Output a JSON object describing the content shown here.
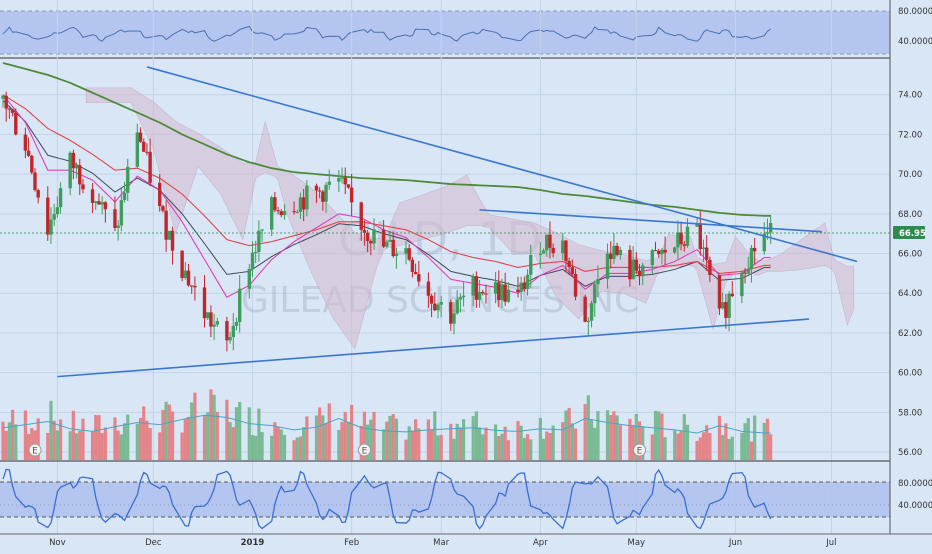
{
  "colors": {
    "background": "#d8e6f6",
    "panel_band": "#aebfee",
    "up_candle": "#3f9c5d",
    "down_candle": "#c0272d",
    "vol_up": "#6fb58a",
    "vol_down": "#e5787c",
    "trendline": "#3b78cc",
    "sma200": "#4f8a3a",
    "ema_red": "#e0454a",
    "ema_pink": "#e040b8",
    "ema_dark": "#404a5a",
    "cloud": "#d7b9cf",
    "price_tag": "#2e8b4e",
    "oscillator": "#3a6fd0"
  },
  "watermark": {
    "symbol": "GILD, 1D",
    "name": "GILEAD SCIENCES INC"
  },
  "price_tag": "66.95",
  "top_axis": [
    "80.0000",
    "40.0000"
  ],
  "price_axis": [
    "74.00",
    "72.00",
    "70.00",
    "68.00",
    "66.00",
    "64.00",
    "62.00",
    "60.00",
    "58.00",
    "56.00"
  ],
  "bottom_axis": [
    "80.0000",
    "40.0000"
  ],
  "x_axis": [
    "Nov",
    "Dec",
    "2019",
    "Feb",
    "Mar",
    "Apr",
    "May",
    "Jun",
    "Jul"
  ],
  "earnings_marker": "E",
  "chart_data": {
    "type": "candlestick",
    "symbol": "GILD",
    "interval": "1D",
    "last_price": 66.95,
    "ylim": [
      55.6,
      75.8
    ],
    "x": [
      "2018-10-15",
      "2018-10-22",
      "2018-10-29",
      "2018-11-05",
      "2018-11-12",
      "2018-11-19",
      "2018-11-26",
      "2018-12-03",
      "2018-12-10",
      "2018-12-17",
      "2018-12-24",
      "2018-12-31",
      "2019-01-07",
      "2019-01-14",
      "2019-01-21",
      "2019-01-28",
      "2019-02-04",
      "2019-02-11",
      "2019-02-18",
      "2019-02-25",
      "2019-03-04",
      "2019-03-11",
      "2019-03-18",
      "2019-03-25",
      "2019-04-01",
      "2019-04-08",
      "2019-04-15",
      "2019-04-22",
      "2019-04-29",
      "2019-05-06",
      "2019-05-13",
      "2019-05-20",
      "2019-05-27",
      "2019-06-03",
      "2019-06-10"
    ],
    "close": [
      73.8,
      71.5,
      67.2,
      70.6,
      69.2,
      66.9,
      72.3,
      68.1,
      65.4,
      63.0,
      61.4,
      65.6,
      68.2,
      68.6,
      69.0,
      69.6,
      67.5,
      66.3,
      66.2,
      64.0,
      62.9,
      64.3,
      64.2,
      63.7,
      66.6,
      66.5,
      62.4,
      66.5,
      65.1,
      65.6,
      66.4,
      67.2,
      62.6,
      65.4,
      66.95
    ],
    "volume": [
      0.62,
      0.68,
      0.74,
      0.6,
      0.55,
      0.64,
      0.72,
      0.68,
      0.78,
      0.86,
      0.82,
      0.7,
      0.66,
      0.58,
      0.63,
      0.8,
      0.62,
      0.56,
      0.54,
      0.58,
      0.6,
      0.62,
      0.57,
      0.55,
      0.6,
      0.58,
      0.8,
      0.72,
      0.66,
      0.62,
      0.58,
      0.52,
      0.66,
      0.55,
      0.52
    ],
    "sma200": [
      75.6,
      75.3,
      75.0,
      74.6,
      74.1,
      73.6,
      73.1,
      72.6,
      72.0,
      71.5,
      71.0,
      70.6,
      70.3,
      70.1,
      70.0,
      69.9,
      69.8,
      69.75,
      69.7,
      69.6,
      69.5,
      69.45,
      69.4,
      69.35,
      69.2,
      69.0,
      68.9,
      68.75,
      68.6,
      68.45,
      68.35,
      68.2,
      68.05,
      67.95,
      67.9
    ],
    "ema_red": [
      74.0,
      73.3,
      72.3,
      71.7,
      71.0,
      70.2,
      70.3,
      69.8,
      69.0,
      67.9,
      66.7,
      66.4,
      66.6,
      66.9,
      67.2,
      67.6,
      67.6,
      67.4,
      67.2,
      66.7,
      66.1,
      65.8,
      65.6,
      65.3,
      65.5,
      65.6,
      65.1,
      65.3,
      65.3,
      65.3,
      65.4,
      65.6,
      65.0,
      65.1,
      65.4
    ],
    "ema_pink": [
      74.0,
      72.6,
      70.2,
      70.2,
      69.7,
      68.6,
      69.9,
      69.2,
      67.6,
      65.7,
      63.8,
      64.4,
      65.7,
      66.6,
      67.3,
      68.0,
      67.8,
      67.2,
      66.8,
      65.8,
      64.7,
      64.5,
      64.3,
      64.0,
      64.9,
      65.4,
      64.2,
      65.0,
      65.0,
      65.2,
      65.6,
      66.2,
      64.9,
      65.0,
      65.8
    ],
    "trendlines": [
      {
        "from": [
          "2018-11-29",
          75.4
        ],
        "to": [
          "2019-07-09",
          65.6
        ]
      },
      {
        "from": [
          "2018-11-01",
          59.8
        ],
        "to": [
          "2019-06-24",
          62.7
        ]
      },
      {
        "from": [
          "2019-03-13",
          68.2
        ],
        "to": [
          "2019-06-28",
          67.1
        ]
      }
    ],
    "oscillator_top": {
      "ylim": [
        20,
        100
      ],
      "levels": [
        80,
        40
      ]
    },
    "oscillator_bottom": {
      "ylim": [
        10,
        95
      ],
      "levels": [
        80,
        20
      ],
      "labelled": [
        80,
        40
      ]
    }
  }
}
